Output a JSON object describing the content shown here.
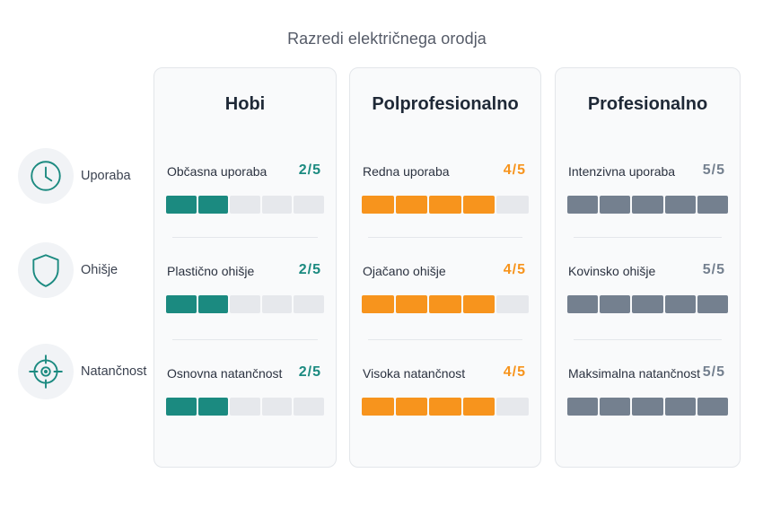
{
  "title": "Razredi električnega orodja",
  "rows": [
    {
      "label": "Uporaba",
      "icon": "clock-icon"
    },
    {
      "label": "Ohišje",
      "icon": "shield-icon"
    },
    {
      "label": "Natančnost",
      "icon": "crosshair-icon"
    }
  ],
  "colors": {
    "Hobi": "#1b8a80",
    "Polprofesionalno": "#f7941d",
    "Profesionalno": "#74808f",
    "empty": "#e6e8ec",
    "icon": "#1b8a80"
  },
  "chart_data": {
    "type": "table",
    "title": "Razredi električnega orodja",
    "categories": [
      "Uporaba",
      "Ohišje",
      "Natančnost"
    ],
    "max": 5,
    "series": [
      {
        "name": "Hobi",
        "cells": [
          {
            "label": "Občasna uporaba",
            "value": 2,
            "score": "2/5"
          },
          {
            "label": "Plastično ohišje",
            "value": 2,
            "score": "2/5"
          },
          {
            "label": "Osnovna natančnost",
            "value": 2,
            "score": "2/5"
          }
        ]
      },
      {
        "name": "Polprofesionalno",
        "cells": [
          {
            "label": "Redna uporaba",
            "value": 4,
            "score": "4/5"
          },
          {
            "label": "Ojačano ohišje",
            "value": 4,
            "score": "4/5"
          },
          {
            "label": "Visoka natančnost",
            "value": 4,
            "score": "4/5"
          }
        ]
      },
      {
        "name": "Profesionalno",
        "cells": [
          {
            "label": "Intenzivna uporaba",
            "value": 5,
            "score": "5/5"
          },
          {
            "label": "Kovinsko ohišje",
            "value": 5,
            "score": "5/5"
          },
          {
            "label": "Maksimalna natančnost",
            "value": 5,
            "score": "5/5"
          }
        ]
      }
    ]
  }
}
